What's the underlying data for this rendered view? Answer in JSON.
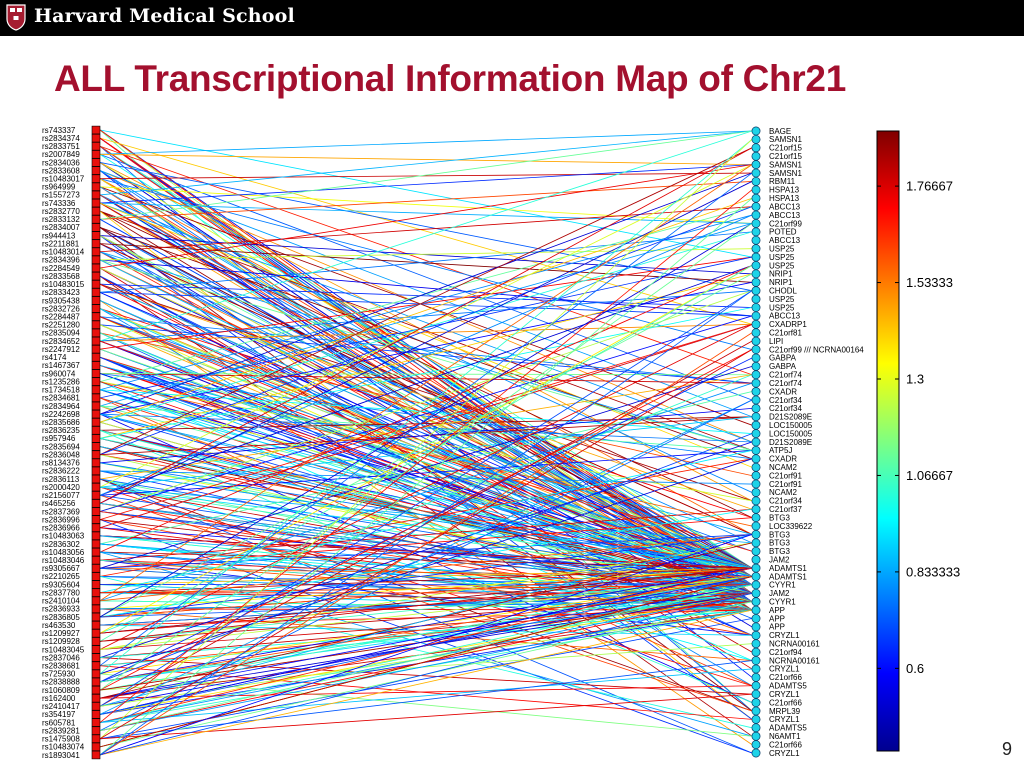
{
  "header": {
    "org_name": "Harvard Medical School"
  },
  "slide": {
    "title": "ALL Transcriptional Information Map of Chr21",
    "page_number": "9"
  },
  "map": {
    "snp_labels": [
      "rs743337",
      "rs2834374",
      "rs2833751",
      "rs2007849",
      "rs2834036",
      "rs2833608",
      "rs10483017",
      "rs964999",
      "rs1557273",
      "rs743336",
      "rs2832770",
      "rs2833132",
      "rs2834007",
      "rs944413",
      "rs2211881",
      "rs10483014",
      "rs2834396",
      "rs2284549",
      "rs2833568",
      "rs10483015",
      "rs2833423",
      "rs9305438",
      "rs2832726",
      "rs2284487",
      "rs2251280",
      "rs2835094",
      "rs2834652",
      "rs2247912",
      "rs4174",
      "rs1467367",
      "rs960074",
      "rs1235286",
      "rs1734518",
      "rs2834681",
      "rs2834964",
      "rs2242698",
      "rs2835686",
      "rs2836235",
      "rs957946",
      "rs2835694",
      "rs2836048",
      "rs8134376",
      "rs2836222",
      "rs2836113",
      "rs2000420",
      "rs2156077",
      "rs465256",
      "rs2837369",
      "rs2836996",
      "rs2836966",
      "rs10483063",
      "rs2836302",
      "rs10483056",
      "rs10483046",
      "rs9305667",
      "rs2210265",
      "rs9305604",
      "rs2837780",
      "rs2410104",
      "rs2836933",
      "rs2836805",
      "rs463530",
      "rs1209927",
      "rs1209928",
      "rs10483045",
      "rs2837046",
      "rs2838681",
      "rs725930",
      "rs2838888",
      "rs1060809",
      "rs162400",
      "rs2410417",
      "rs354197",
      "rs605781",
      "rs2839281",
      "rs1475908",
      "rs10483074",
      "rs1893041"
    ],
    "gene_labels": [
      "BAGE",
      "SAMSN1",
      "C21orf15",
      "C21orf15",
      "SAMSN1",
      "SAMSN1",
      "RBM11",
      "HSPA13",
      "HSPA13",
      "ABCC13",
      "ABCC13",
      "C21orf99",
      "POTED",
      "ABCC13",
      "USP25",
      "USP25",
      "USP25",
      "NRIP1",
      "NRIP1",
      "CHODL",
      "USP25",
      "USP25",
      "ABCC13",
      "CXADRP1",
      "C21orf81",
      "LIPI",
      "C21orf99 /// NCRNA00164",
      "GABPA",
      "GABPA",
      "C21orf74",
      "C21orf74",
      "CXADR",
      "C21orf34",
      "C21orf34",
      "D21S2089E",
      "LOC150005",
      "LOC150005",
      "D21S2089E",
      "ATP5J",
      "CXADR",
      "NCAM2",
      "C21orf91",
      "C21orf91",
      "NCAM2",
      "C21orf34",
      "C21orf37",
      "BTG3",
      "LOC339622",
      "BTG3",
      "BTG3",
      "BTG3",
      "JAM2",
      "ADAMTS1",
      "ADAMTS1",
      "CYYR1",
      "JAM2",
      "CYYR1",
      "APP",
      "APP",
      "APP",
      "CRYZL1",
      "NCRNA00161",
      "C21orf94",
      "NCRNA00161",
      "CRYZL1",
      "C21orf66",
      "ADAMTS5",
      "CRYZL1",
      "C21orf66",
      "MRPL39",
      "CRYZL1",
      "ADAMTS5",
      "N6AMT1",
      "C21orf66",
      "CRYZL1"
    ],
    "colorbar": {
      "tick_labels": [
        "1.76667",
        "1.53333",
        "1.3",
        "1.06667",
        "0.833333",
        "0.6"
      ],
      "tick_values": [
        1.76667,
        1.53333,
        1.3,
        1.06667,
        0.833333,
        0.6
      ],
      "range": [
        0.4,
        1.9
      ]
    },
    "colors": {
      "snp_marker": "#e8100c",
      "gene_marker": "#1ed3e8",
      "title": "#a3102e"
    }
  }
}
